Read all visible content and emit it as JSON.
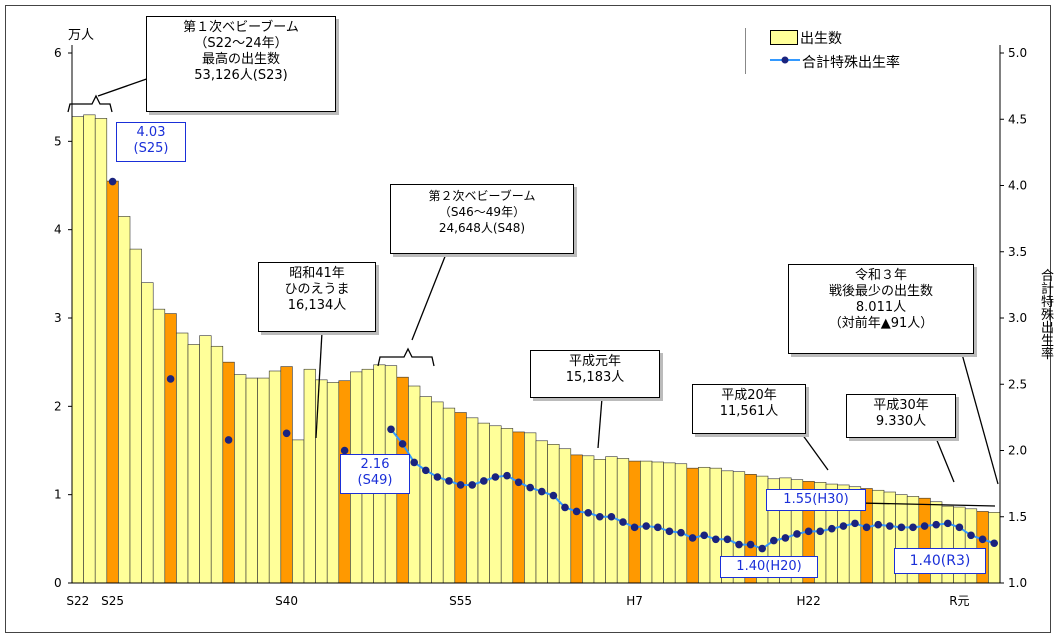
{
  "y_left_unit": "万人",
  "y_right_label": "合計特殊出生率",
  "legend": {
    "births": "出生数",
    "tfr": "合計特殊出生率"
  },
  "annotations": {
    "baby_boom_1": "第１次ベビーブーム\n（S22～24年）\n最高の出生数\n53,126人(S23)",
    "baby_boom_2": "第２次ベビーブーム\n（S46～49年）\n24,648人(S48)",
    "hinoeuma": "昭和41年\nひのえうま\n16,134人",
    "heisei_1": "平成元年\n15,183人",
    "heisei_20": "平成20年\n11,561人",
    "heisei_30": "平成30年\n9.330人",
    "reiwa_3": "令和３年\n戦後最少の出生数\n8.011人\n（対前年▲91人）",
    "tfr_s25": "4.03\n(S25)",
    "tfr_s49": "2.16\n(S49)",
    "tfr_h20": "1.40(H20)",
    "tfr_h30": "1.55(H30)",
    "tfr_r3": "1.40(R3)"
  },
  "colors": {
    "bar_light": "#ffff99",
    "bar_dark": "#ff9900",
    "tfr_line": "#3399ff",
    "tfr_marker": "#1a237e",
    "blue_text": "#1a2fd8"
  },
  "chart_data": {
    "type": "bar",
    "x_tick_labels": [
      "S22",
      "S25",
      "S40",
      "S55",
      "H7",
      "H22",
      "R元"
    ],
    "yleft": {
      "min": 0,
      "max": 6,
      "ticks": [
        "0",
        "1",
        "2",
        "3",
        "4",
        "5",
        "6"
      ]
    },
    "yright": {
      "min": 1.0,
      "max": 5.0,
      "ticks": [
        "1.0",
        "1.5",
        "2.0",
        "2.5",
        "3.0",
        "3.5",
        "4.0",
        "4.5",
        "5.0"
      ]
    },
    "grid": false,
    "legend_position": "top-right",
    "series": [
      {
        "name": "出生数",
        "type": "bar",
        "values": [
          5.28,
          5.3,
          5.26,
          4.55,
          4.15,
          3.78,
          3.4,
          3.1,
          3.05,
          2.83,
          2.7,
          2.8,
          2.68,
          2.5,
          2.36,
          2.32,
          2.32,
          2.4,
          2.45,
          1.62,
          2.42,
          2.3,
          2.27,
          2.29,
          2.39,
          2.42,
          2.47,
          2.46,
          2.33,
          2.23,
          2.11,
          2.05,
          1.98,
          1.93,
          1.87,
          1.81,
          1.78,
          1.75,
          1.71,
          1.7,
          1.61,
          1.57,
          1.52,
          1.45,
          1.44,
          1.4,
          1.43,
          1.41,
          1.38,
          1.38,
          1.37,
          1.36,
          1.35,
          1.3,
          1.31,
          1.3,
          1.27,
          1.26,
          1.23,
          1.21,
          1.18,
          1.19,
          1.17,
          1.15,
          1.14,
          1.12,
          1.11,
          1.09,
          1.07,
          1.05,
          1.03,
          1.0,
          0.98,
          0.96,
          0.92,
          0.87,
          0.86,
          0.84,
          0.81,
          0.8
        ],
        "highlight_indices": [
          3,
          8,
          13,
          18,
          23,
          28,
          33,
          38,
          43,
          48,
          53,
          58,
          63,
          68,
          73,
          78
        ]
      },
      {
        "name": "合計特殊出生率",
        "type": "line",
        "points": [
          [
            3,
            4.03
          ],
          [
            8,
            2.54
          ],
          [
            13,
            2.08
          ],
          [
            18,
            2.13
          ],
          [
            23,
            2.0
          ],
          [
            27,
            2.16
          ],
          [
            28,
            2.05
          ],
          [
            29,
            1.91
          ],
          [
            30,
            1.85
          ],
          [
            31,
            1.8
          ],
          [
            32,
            1.77
          ],
          [
            33,
            1.74
          ],
          [
            34,
            1.74
          ],
          [
            35,
            1.77
          ],
          [
            36,
            1.8
          ],
          [
            37,
            1.81
          ],
          [
            38,
            1.76
          ],
          [
            39,
            1.72
          ],
          [
            40,
            1.69
          ],
          [
            41,
            1.66
          ],
          [
            42,
            1.57
          ],
          [
            43,
            1.54
          ],
          [
            44,
            1.53
          ],
          [
            45,
            1.5
          ],
          [
            46,
            1.5
          ],
          [
            47,
            1.46
          ],
          [
            48,
            1.42
          ],
          [
            49,
            1.43
          ],
          [
            50,
            1.42
          ],
          [
            51,
            1.39
          ],
          [
            52,
            1.38
          ],
          [
            53,
            1.34
          ],
          [
            54,
            1.36
          ],
          [
            55,
            1.33
          ],
          [
            56,
            1.33
          ],
          [
            57,
            1.29
          ],
          [
            58,
            1.29
          ],
          [
            59,
            1.26
          ],
          [
            60,
            1.32
          ],
          [
            61,
            1.34
          ],
          [
            62,
            1.37
          ],
          [
            63,
            1.39
          ],
          [
            64,
            1.39
          ],
          [
            65,
            1.41
          ],
          [
            66,
            1.43
          ],
          [
            67,
            1.45
          ],
          [
            68,
            1.42
          ],
          [
            69,
            1.44
          ],
          [
            70,
            1.43
          ],
          [
            71,
            1.42
          ],
          [
            72,
            1.42
          ],
          [
            73,
            1.43
          ],
          [
            74,
            1.44
          ],
          [
            75,
            1.45
          ],
          [
            76,
            1.42
          ],
          [
            77,
            1.36
          ],
          [
            78,
            1.33
          ],
          [
            79,
            1.3
          ]
        ]
      }
    ]
  }
}
